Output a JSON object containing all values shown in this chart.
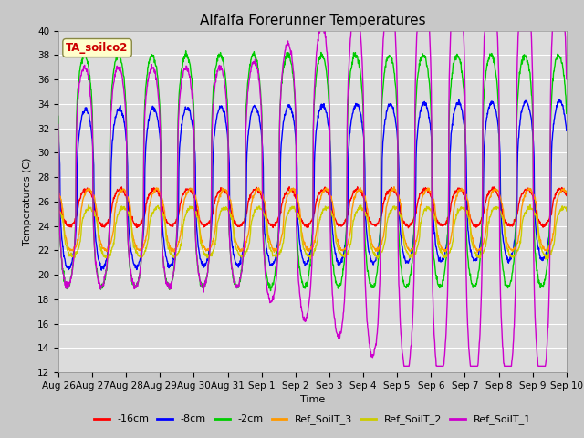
{
  "title": "Alfalfa Forerunner Temperatures",
  "xlabel": "Time",
  "ylabel": "Temperatures (C)",
  "ylim": [
    12,
    40
  ],
  "yticks": [
    12,
    14,
    16,
    18,
    20,
    22,
    24,
    26,
    28,
    30,
    32,
    34,
    36,
    38,
    40
  ],
  "xtick_labels": [
    "Aug 26",
    "Aug 27",
    "Aug 28",
    "Aug 29",
    "Aug 30",
    "Aug 31",
    "Sep 1",
    "Sep 2",
    "Sep 3",
    "Sep 4",
    "Sep 5",
    "Sep 6",
    "Sep 7",
    "Sep 8",
    "Sep 9",
    "Sep 10"
  ],
  "legend_entries": [
    "-16cm",
    "-8cm",
    "-2cm",
    "Ref_SoilT_3",
    "Ref_SoilT_2",
    "Ref_SoilT_1"
  ],
  "line_colors": [
    "#ff0000",
    "#0000ff",
    "#00cc00",
    "#ff9900",
    "#cccc00",
    "#cc00cc"
  ],
  "annotation_text": "TA_soilco2",
  "annotation_bg": "#ffffcc",
  "annotation_border": "#cc0000",
  "background_color": "#dcdcdc",
  "grid_color": "#ffffff",
  "title_fontsize": 11,
  "label_fontsize": 8,
  "tick_fontsize": 7.5,
  "legend_fontsize": 8,
  "n_days": 15,
  "points_per_day": 96
}
